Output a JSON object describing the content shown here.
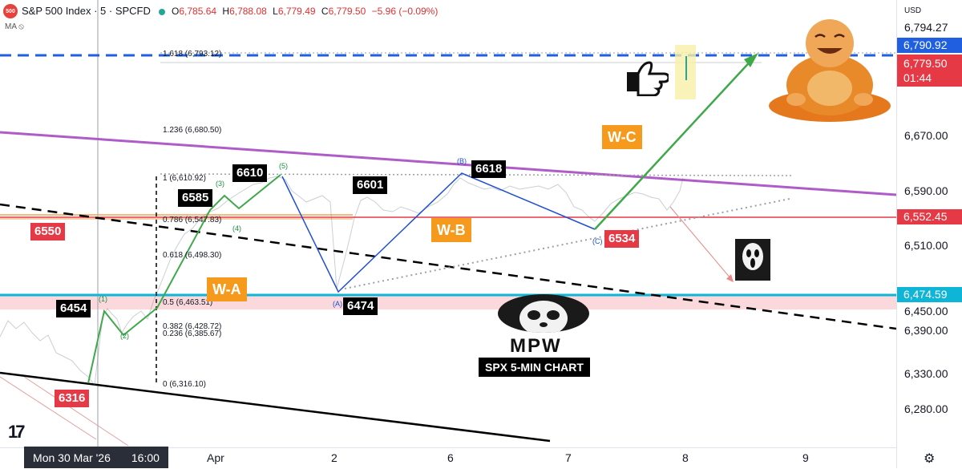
{
  "header": {
    "logo_text": "500",
    "symbol_title": "S&P 500 Index · 5 · SPCFD",
    "ohlc": {
      "o_label": "O",
      "o_value": "6,785.64",
      "h_label": "H",
      "h_value": "6,788.08",
      "l_label": "L",
      "l_value": "6,779.49",
      "c_label": "C",
      "c_value": "6,779.50",
      "change": "−5.96 (−0.09%)"
    },
    "indicator_label": "MA"
  },
  "price_axis": {
    "currency": "USD",
    "ticks": [
      "6,794.27",
      "6,670.00",
      "6,590.00",
      "6,510.00",
      "6,450.00",
      "6,390.00",
      "6,330.00",
      "6,280.00"
    ],
    "tags": {
      "target": "6,790.92",
      "last_price": "6,779.50",
      "countdown": "01:44",
      "red_level": "6,552.45",
      "blue_level": "6,474.59"
    }
  },
  "time_axis": {
    "cursor_date": "Mon 30 Mar '26",
    "cursor_time": "16:00",
    "ticks": [
      "Apr",
      "2",
      "6",
      "7",
      "8",
      "9"
    ]
  },
  "fib_levels": [
    {
      "label": "1.618 (6,793.12)"
    },
    {
      "label": "1.236 (6,680.50)"
    },
    {
      "label": "1 (6,610.92)"
    },
    {
      "label": "0.786 (6,547.83)"
    },
    {
      "label": "0.618 (6,498.30)"
    },
    {
      "label": "0.5 (6,463.51)"
    },
    {
      "label": "0.382 (6,428.72)"
    },
    {
      "label": "0.236 (6,385.67)"
    },
    {
      "label": "0 (6,316.10)"
    }
  ],
  "price_labels": {
    "p6316": "6316",
    "p6454": "6454",
    "p6550": "6550",
    "p6585": "6585",
    "p6610": "6610",
    "p6601": "6601",
    "p6618": "6618",
    "p6474": "6474",
    "p6534": "6534"
  },
  "wave_labels": {
    "wa": "W-A",
    "wb": "W-B",
    "wc": "W-C",
    "g1": "(1)",
    "g2": "(2)",
    "g3": "(3)",
    "g4": "(4)",
    "g5": "(5)",
    "bA": "(A)",
    "bB": "(B)",
    "bC": "(C)"
  },
  "branding": {
    "mpw": "MPW",
    "subtitle": "SPX 5-MIN CHART",
    "tv_logo": "17"
  },
  "colors": {
    "up": "#26a69a",
    "down": "#e03030",
    "blue_line": "#0fb5d6",
    "purple_line": "#b05cc8",
    "red_line": "#e53945",
    "green_arrow": "#3fa84a"
  }
}
